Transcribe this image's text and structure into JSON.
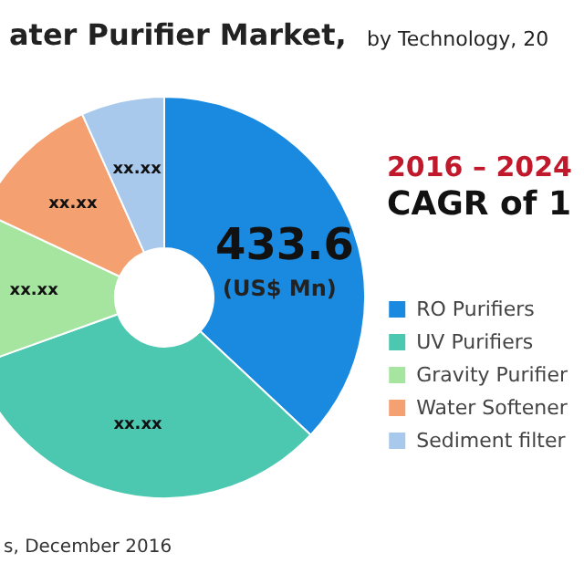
{
  "chart_data": {
    "type": "donut",
    "title": "ater Purifier Market,",
    "subtitle": "by Technology, 20",
    "categories": [
      "RO Purifiers",
      "UV Purifiers",
      "Gravity Purifier",
      "Water Softener",
      "Sediment filter"
    ],
    "values": [
      37,
      32.5,
      12.5,
      11.3,
      6.7
    ],
    "colors": [
      "#1a8ae0",
      "#4cc8b0",
      "#a6e5a0",
      "#f5a070",
      "#a8c8ec"
    ],
    "value_labels": [
      null,
      "xx.xx",
      "xx.xx",
      "xx.xx",
      "xx.xx"
    ],
    "annotations": [
      "(US$ Mn)",
      "2016 – 2024",
      "CAGR of 1",
      "s, December 2016",
      "433.6"
    ],
    "legend": "right"
  }
}
